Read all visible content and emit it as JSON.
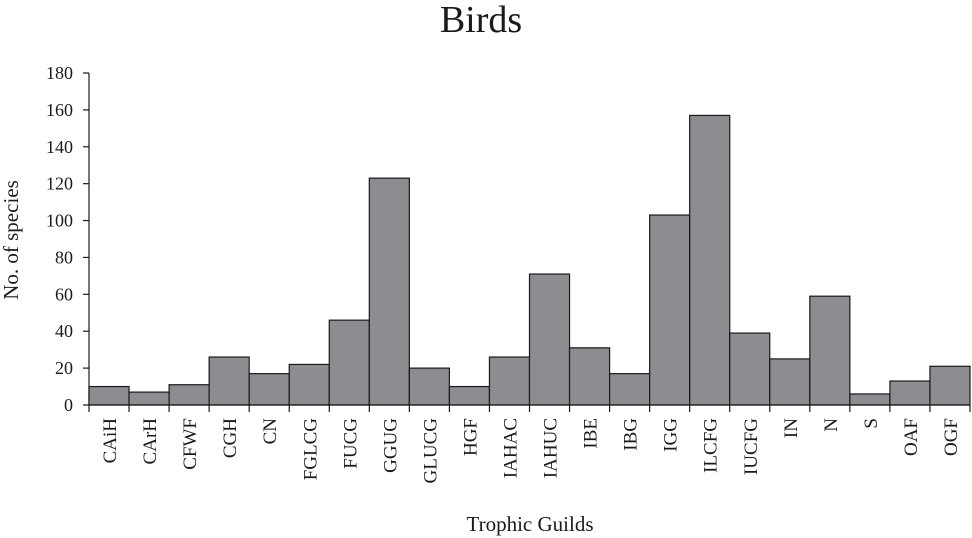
{
  "chart_data": {
    "type": "bar",
    "title": "Birds",
    "xlabel": "Trophic Guilds",
    "ylabel": "No. of species",
    "ylim": [
      0,
      180
    ],
    "yticks": [
      0,
      20,
      40,
      60,
      80,
      100,
      120,
      140,
      160,
      180
    ],
    "grid": false,
    "legend": "none",
    "categories": [
      "CAiH",
      "CArH",
      "CFWF",
      "CGH",
      "CN",
      "FGLCG",
      "FUCG",
      "GGUG",
      "GLUCG",
      "HGF",
      "IAHAC",
      "IAHUC",
      "IBE",
      "IBG",
      "IGG",
      "ILCFG",
      "IUCFG",
      "IN",
      "N",
      "S",
      "OAF",
      "OGF"
    ],
    "values": [
      10,
      7,
      11,
      26,
      17,
      22,
      46,
      123,
      20,
      10,
      26,
      71,
      31,
      17,
      103,
      157,
      39,
      25,
      59,
      6,
      13,
      21
    ],
    "colors": {
      "bar_fill": "#8c8c91",
      "bar_stroke": "#1a1a1a",
      "axis": "#1a1a1a",
      "text": "#1a1a1a"
    }
  }
}
